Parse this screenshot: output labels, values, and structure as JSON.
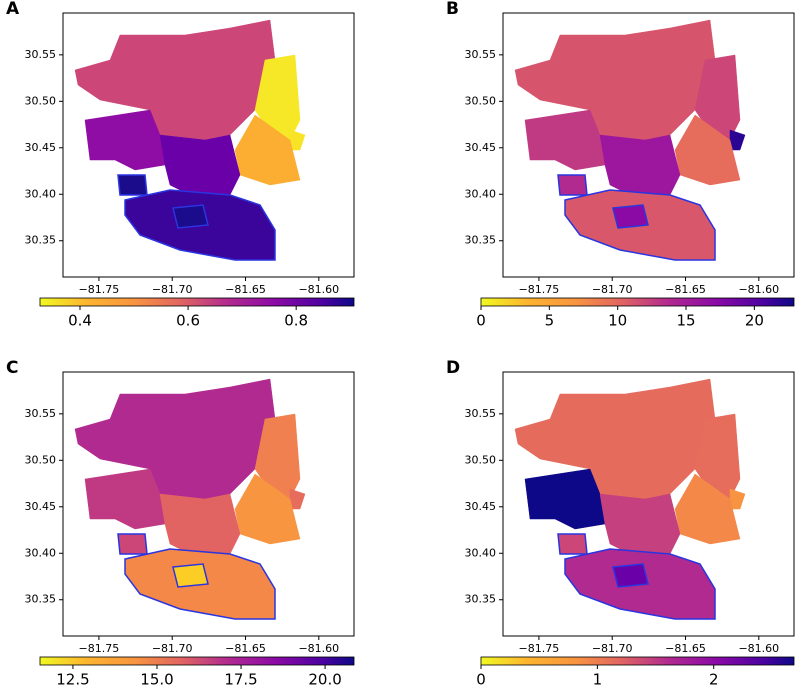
{
  "chart_data": [
    {
      "type": "map",
      "label": "A",
      "xlim": [
        -81.7745,
        -81.576
      ],
      "ylim": [
        30.311,
        30.595
      ],
      "xticks": [
        {
          "value": -81.75,
          "label": "−81.75"
        },
        {
          "value": -81.7,
          "label": "−81.70"
        },
        {
          "value": -81.65,
          "label": "−81.65"
        },
        {
          "value": -81.6,
          "label": "−81.60"
        }
      ],
      "yticks": [
        30.35,
        {
          "value": 30.4,
          "label": "30.40"
        },
        30.45,
        {
          "value": 30.5,
          "label": "30.50"
        },
        30.55
      ],
      "colorbar": {
        "lim": [
          0.326,
          0.907
        ],
        "ticks": [
          0.4,
          0.6,
          0.8
        ]
      }
    },
    {
      "type": "map",
      "label": "B",
      "xlim": [
        -81.7745,
        -81.576
      ],
      "ylim": [
        30.311,
        30.595
      ],
      "xticks": [
        {
          "value": -81.75,
          "label": "−81.75"
        },
        {
          "value": -81.7,
          "label": "−81.70"
        },
        {
          "value": -81.65,
          "label": "−81.65"
        },
        {
          "value": -81.6,
          "label": "−81.60"
        }
      ],
      "yticks": [
        30.35,
        {
          "value": 30.4,
          "label": "30.40"
        },
        30.45,
        {
          "value": 30.5,
          "label": "30.50"
        },
        30.55
      ],
      "colorbar": {
        "lim": [
          0,
          22.9
        ],
        "ticks": [
          0,
          5,
          10,
          15,
          20
        ]
      }
    },
    {
      "type": "map",
      "label": "C",
      "xlim": [
        -81.7745,
        -81.576
      ],
      "ylim": [
        30.311,
        30.595
      ],
      "xticks": [
        {
          "value": -81.75,
          "label": "−81.75"
        },
        {
          "value": -81.7,
          "label": "−81.70"
        },
        {
          "value": -81.65,
          "label": "−81.65"
        },
        {
          "value": -81.6,
          "label": "−81.60"
        }
      ],
      "yticks": [
        30.35,
        {
          "value": 30.4,
          "label": "30.40"
        },
        30.45,
        {
          "value": 30.5,
          "label": "30.50"
        },
        30.55
      ],
      "colorbar": {
        "lim": [
          11.52,
          20.86
        ],
        "ticks": [
          12.5,
          {
            "value": 15,
            "label": "15.0"
          },
          17.5,
          {
            "value": 20,
            "label": "20.0"
          }
        ]
      }
    },
    {
      "type": "map",
      "label": "D",
      "xlim": [
        -81.7745,
        -81.576
      ],
      "ylim": [
        30.311,
        30.595
      ],
      "xticks": [
        {
          "value": -81.75,
          "label": "−81.75"
        },
        {
          "value": -81.7,
          "label": "−81.70"
        },
        {
          "value": -81.65,
          "label": "−81.65"
        },
        {
          "value": -81.6,
          "label": "−81.60"
        }
      ],
      "yticks": [
        30.35,
        {
          "value": 30.4,
          "label": "30.40"
        },
        30.45,
        {
          "value": 30.5,
          "label": "30.50"
        },
        30.55
      ],
      "colorbar": {
        "lim": [
          0,
          2.69
        ],
        "ticks": [
          0,
          1,
          2
        ]
      }
    }
  ]
}
